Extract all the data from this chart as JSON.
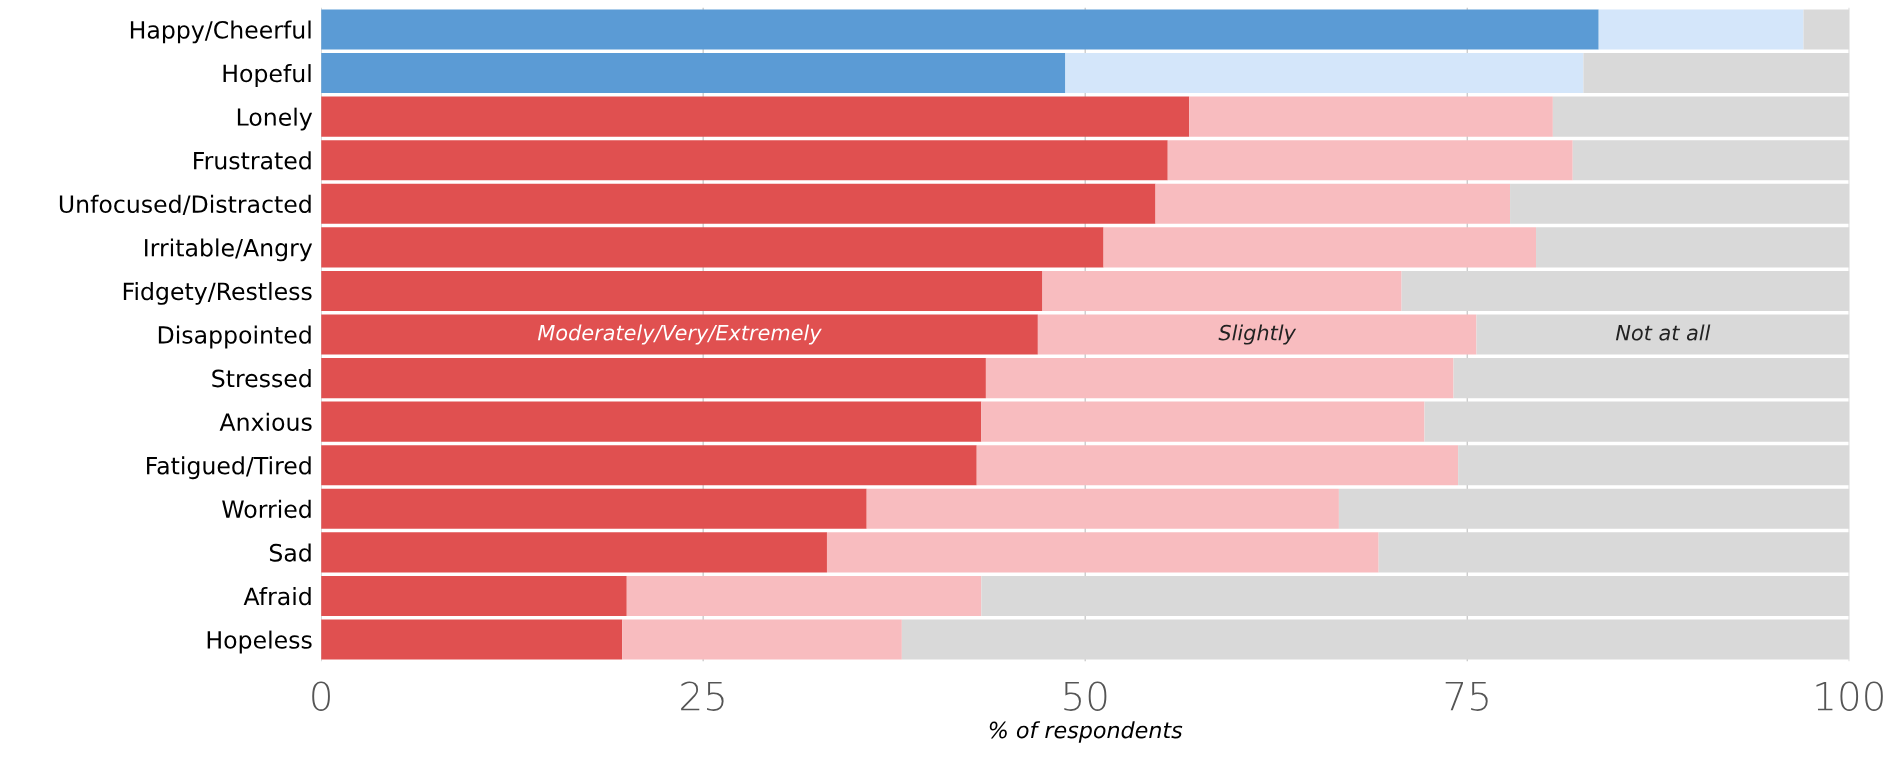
{
  "chart_data": {
    "type": "bar",
    "orientation": "horizontal",
    "stacked": true,
    "categories": [
      "Happy/Cheerful",
      "Hopeful",
      "Lonely",
      "Frustrated",
      "Unfocused/Distracted",
      "Irritable/Angry",
      "Fidgety/Restless",
      "Disappointed",
      "Stressed",
      "Anxious",
      "Fatigued/Tired",
      "Worried",
      "Sad",
      "Afraid",
      "Hopeless"
    ],
    "series": [
      {
        "name": "Moderately/Very/Extremely",
        "colors": [
          "#5b9bd5",
          "#5b9bd5",
          "#e05050",
          "#e05050",
          "#e05050",
          "#e05050",
          "#e05050",
          "#e05050",
          "#e05050",
          "#e05050",
          "#e05050",
          "#e05050",
          "#e05050",
          "#e05050",
          "#e05050"
        ],
        "values": [
          83.6,
          48.7,
          56.8,
          55.4,
          54.6,
          51.2,
          47.2,
          46.9,
          43.5,
          43.2,
          42.9,
          35.7,
          33.1,
          20.0,
          19.7
        ]
      },
      {
        "name": "Slightly",
        "colors": [
          "#d4e6fa",
          "#d4e6fa",
          "#f8bcbf",
          "#f8bcbf",
          "#f8bcbf",
          "#f8bcbf",
          "#f8bcbf",
          "#f8bcbf",
          "#f8bcbf",
          "#f8bcbf",
          "#f8bcbf",
          "#f8bcbf",
          "#f8bcbf",
          "#f8bcbf",
          "#f8bcbf"
        ],
        "values": [
          13.4,
          33.9,
          23.8,
          26.5,
          23.2,
          28.3,
          23.5,
          28.7,
          30.6,
          29.0,
          31.5,
          30.9,
          36.1,
          23.2,
          18.3
        ]
      },
      {
        "name": "Not at all",
        "color": "#d9d9d9",
        "values": [
          3.0,
          17.4,
          19.4,
          18.1,
          22.2,
          20.5,
          29.3,
          24.4,
          25.9,
          27.8,
          25.6,
          33.4,
          30.8,
          56.8,
          62.0
        ]
      }
    ],
    "xlim": [
      0,
      100
    ],
    "xticks": [
      0,
      25,
      50,
      75,
      100
    ],
    "xlabel": "% of respondents",
    "grid": "x",
    "legend": false
  }
}
